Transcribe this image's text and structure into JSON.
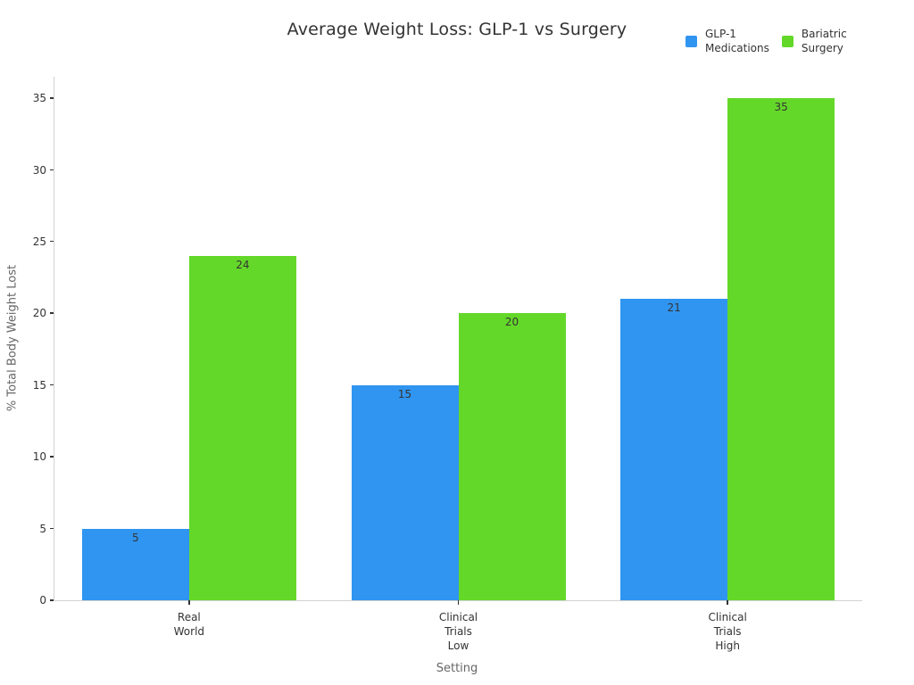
{
  "chart_data": {
    "type": "bar",
    "title": "Average Weight Loss: GLP-1 vs Surgery",
    "xlabel": "Setting",
    "ylabel": "% Total Body Weight Lost",
    "categories": [
      "Real\nWorld",
      "Clinical\nTrials\nLow",
      "Clinical\nTrials\nHigh"
    ],
    "series": [
      {
        "name": "GLP-1\nMedications",
        "color": "#3095F1",
        "values": [
          5,
          15,
          21
        ]
      },
      {
        "name": "Bariatric\nSurgery",
        "color": "#64D829",
        "values": [
          24,
          20,
          35
        ]
      }
    ],
    "yticks": [
      0,
      5,
      10,
      15,
      20,
      25,
      30,
      35
    ],
    "ylim": [
      0,
      36.5
    ],
    "grid": false,
    "legend_position": "top-right",
    "value_labels": "inside-top",
    "background_color": "#ffffff",
    "axis_line_color": "#d2d2d2",
    "tick_color": "#333333",
    "axis_title_color": "#666666"
  }
}
